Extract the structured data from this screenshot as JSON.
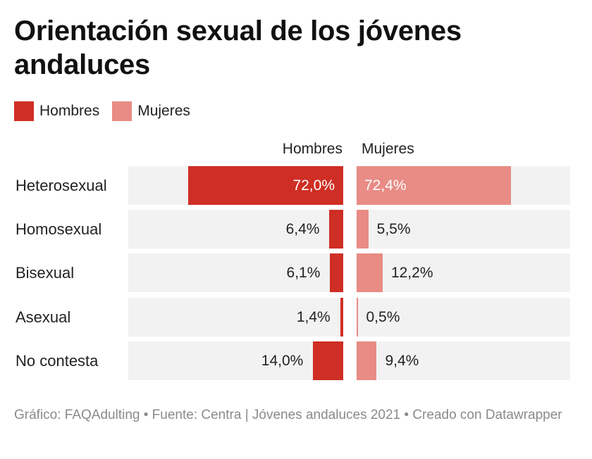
{
  "title": "Orientación sexual de los jóvenes andaluces",
  "legend": [
    {
      "label": "Hombres",
      "color": "#cf2e24"
    },
    {
      "label": "Mujeres",
      "color": "#e88c85"
    }
  ],
  "chart_data": {
    "type": "bar",
    "title": "Orientación sexual de los jóvenes andaluces",
    "categories": [
      "Heterosexual",
      "Homosexual",
      "Bisexual",
      "Asexual",
      "No contesta"
    ],
    "series": [
      {
        "name": "Hombres",
        "values": [
          72.0,
          6.4,
          6.1,
          1.4,
          14.0
        ],
        "labels": [
          "72,0%",
          "6,4%",
          "6,1%",
          "1,4%",
          "14,0%"
        ]
      },
      {
        "name": "Mujeres",
        "values": [
          72.4,
          5.5,
          12.2,
          0.5,
          9.4
        ],
        "labels": [
          "72,4%",
          "5,5%",
          "12,2%",
          "0,5%",
          "9,4%"
        ]
      }
    ],
    "xlim": [
      0,
      100
    ],
    "legend_position": "top-left"
  },
  "footer": "Gráfico: FAQAdulting • Fuente: Centra | Jóvenes andaluces 2021 • Creado con Datawrapper"
}
